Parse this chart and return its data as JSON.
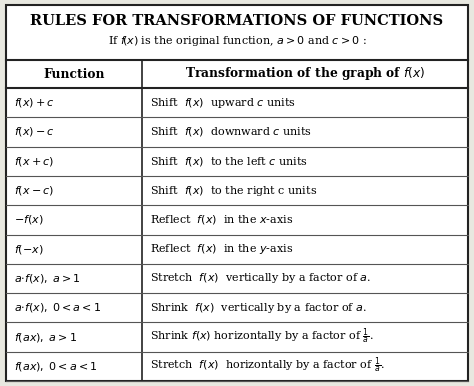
{
  "title": "RULES FOR TRANSFORMATIONS OF FUNCTIONS",
  "col1_header": "Function",
  "col2_header": "Transformation of the graph of $\\mathit{f}(\\mathit{x})$",
  "rows_col1": [
    "$f(x)+c$",
    "$f(x)-c$",
    "$f(x+c)$",
    "$f(x-c)$",
    "$-f(x)$",
    "$f(-x)$",
    "$a{\\cdot}f(x),\\; a>1$",
    "$a{\\cdot}f(x),\\; 0<a<1$",
    "$f(ax),\\; a>1$",
    "$f(ax),\\; 0<a<1$"
  ],
  "rows_col2": [
    "Shift  $f(x)$  upward $c$ units",
    "Shift  $f(x)$  downward $c$ units",
    "Shift  $f(x)$  to the left $c$ units",
    "Shift  $f(x)$  to the right c units",
    "Reflect  $f(x)$  in the $x$-axis",
    "Reflect  $f(x)$  in the $y$-axis",
    "Stretch  $f(x)$  vertically by a factor of $a$.",
    "Shrink  $f(x)$  vertically by a factor of $a$.",
    "Shrink $f(x)$ horizontally by a factor of $\\frac{1}{a}$.",
    "Stretch  $f(x)$  horizontally by a factor of $\\frac{1}{a}$."
  ],
  "bg_color": "#e8e8e0",
  "white": "#ffffff",
  "border_color": "#222222",
  "line_color": "#555555",
  "col_split": 0.295,
  "title_fontsize": 10.5,
  "subtitle_fontsize": 8.0,
  "header_fontsize": 8.8,
  "cell_fontsize": 8.0
}
